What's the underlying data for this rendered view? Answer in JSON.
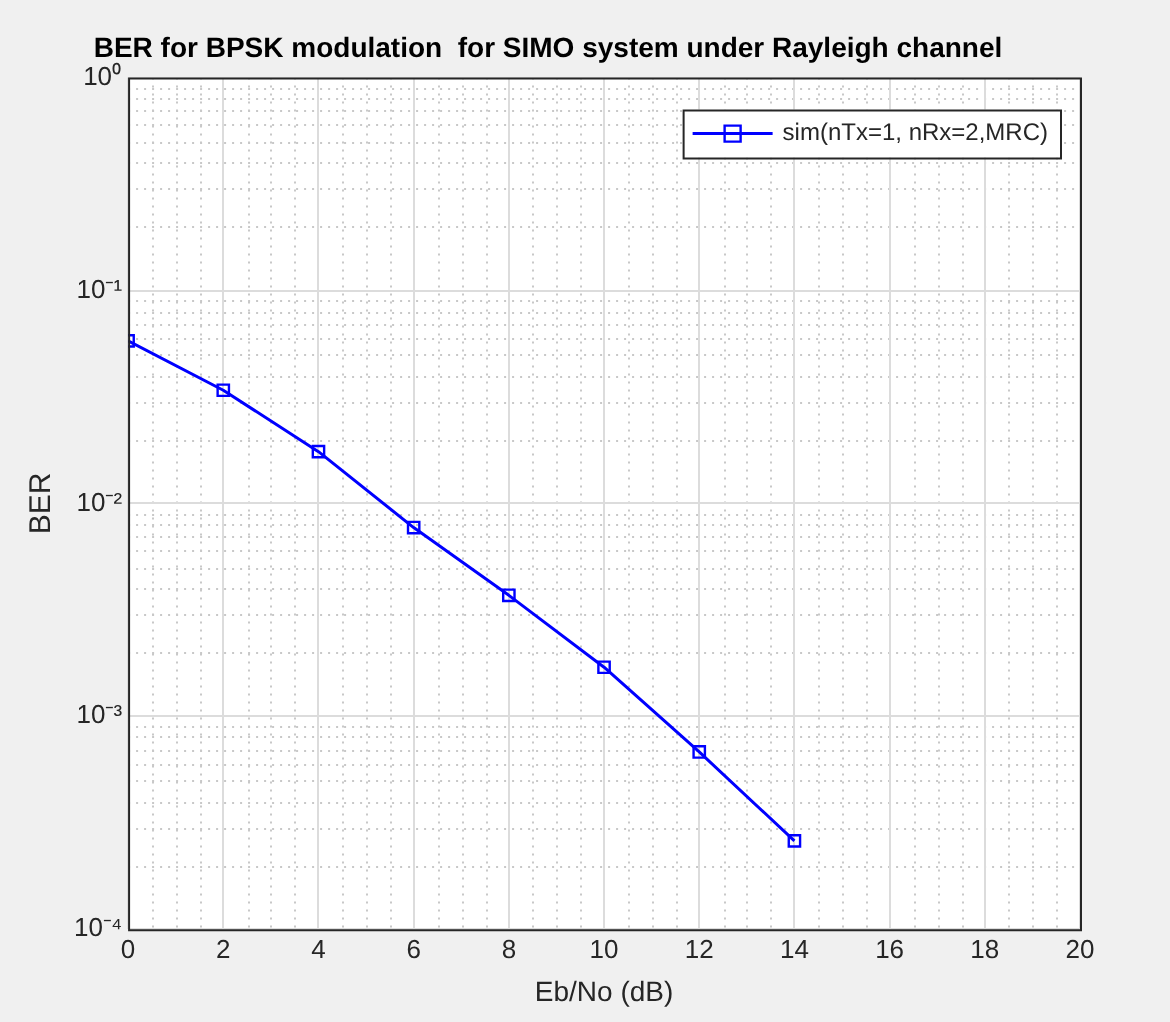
{
  "chart_data": {
    "type": "line",
    "title": "BER for BPSK modulation  for SIMO system under Rayleigh channel",
    "xlabel": "Eb/No (dB)",
    "ylabel": "BER",
    "x": [
      0,
      2,
      4,
      6,
      8,
      10,
      12,
      14
    ],
    "series": [
      {
        "name": "sim(nTx=1, nRx=2,MRC)",
        "color": "#0000ff",
        "values": [
          0.058,
          0.034,
          0.0175,
          0.0077,
          0.0037,
          0.0017,
          0.00068,
          0.00026
        ]
      }
    ],
    "xlim": [
      0,
      20
    ],
    "xticks": [
      0,
      2,
      4,
      6,
      8,
      10,
      12,
      14,
      16,
      18,
      20
    ],
    "ylim": [
      0.0001,
      1
    ],
    "yticks": [
      {
        "value": 0.0001,
        "label": "10⁻⁴"
      },
      {
        "value": 0.001,
        "label": "10⁻³"
      },
      {
        "value": 0.01,
        "label": "10⁻²"
      },
      {
        "value": 0.1,
        "label": "10⁻¹"
      },
      {
        "value": 1,
        "label": "10⁰"
      }
    ],
    "log": "y",
    "grid": true,
    "legend": "top right",
    "marker": "square",
    "line_style": "solid"
  }
}
